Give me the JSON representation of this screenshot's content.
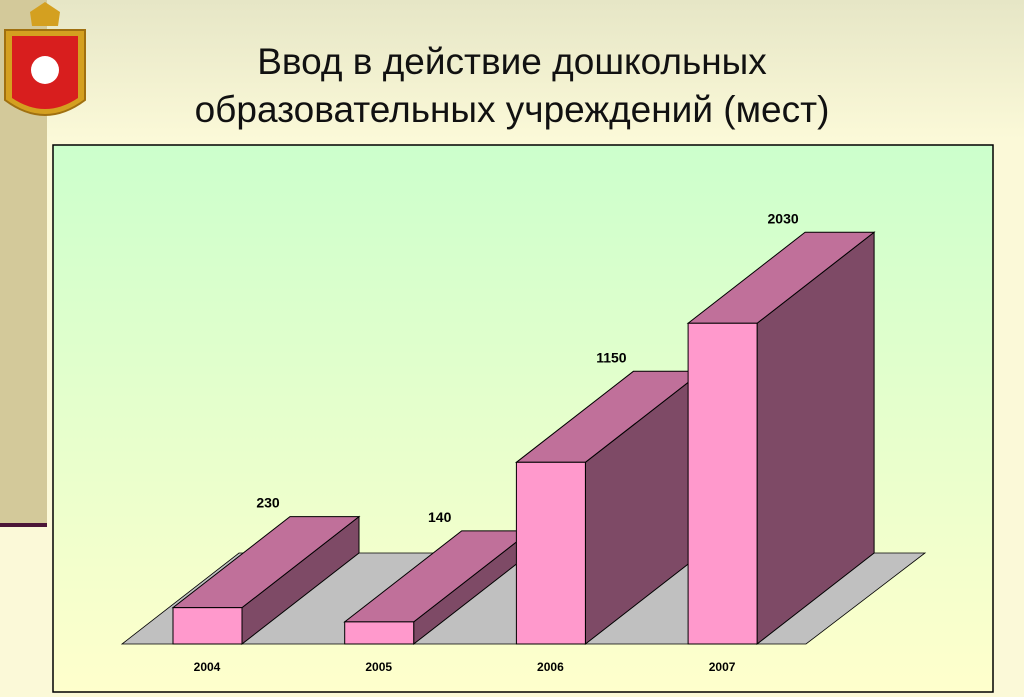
{
  "chart_data": {
    "type": "bar3d",
    "title": "Ввод в действие дошкольных образовательных учреждений (мест)",
    "categories": [
      "2004",
      "2005",
      "2006",
      "2007"
    ],
    "values": [
      230,
      140,
      1150,
      2030
    ],
    "colors": {
      "front": "#ff99cc",
      "top": "#c0709a",
      "side": "#7e4a66",
      "floor": "#c0c0c0"
    },
    "ylim": [
      0,
      2500
    ]
  }
}
